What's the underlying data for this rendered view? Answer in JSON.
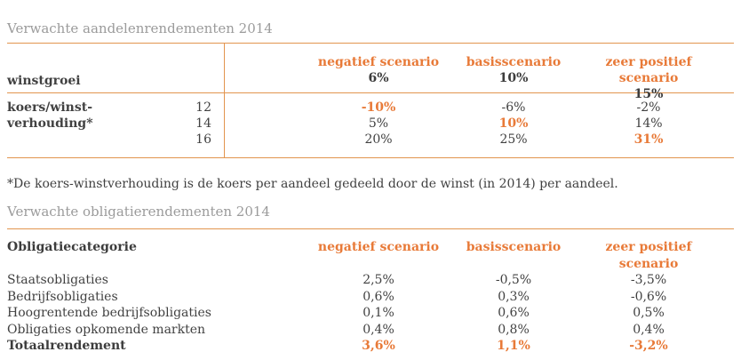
{
  "colors": {
    "orange_text": "#e87a38",
    "orange_line": "#e2954e",
    "title_gray": "#9b9b9b",
    "body_text": "#414141"
  },
  "equity_table": {
    "title": "Verwachte aandelenrendementen 2014",
    "row_axis_label": "winstgroei",
    "scenarios": [
      {
        "label": "negatief scenario",
        "value": "6%"
      },
      {
        "label": "basisscenario",
        "value": "10%"
      },
      {
        "label": "zeer positief scenario",
        "value": "15%"
      }
    ],
    "col_axis_label_line1": "koers/winst-",
    "col_axis_label_line2": "verhouding*",
    "pe_ratios": [
      "12",
      "14",
      "16"
    ],
    "rows": [
      {
        "pe": "12",
        "values": [
          "-10%",
          "-6%",
          "-2%"
        ]
      },
      {
        "pe": "14",
        "values": [
          "5%",
          "10%",
          "14%"
        ]
      },
      {
        "pe": "16",
        "values": [
          "20%",
          "25%",
          "31%"
        ]
      }
    ],
    "footnote": "*De koers-winstverhouding is de koers per aandeel gedeeld door de winst (in 2014) per aandeel."
  },
  "bond_table": {
    "title": "Verwachte obligatierendementen 2014",
    "category_header": "Obligatiecategorie",
    "scenario_headers": [
      "negatief scenario",
      "basisscenario",
      "zeer positief scenario"
    ],
    "rows": [
      {
        "label": "Staatsobligaties",
        "values": [
          "2,5%",
          "-0,5%",
          "-3,5%"
        ]
      },
      {
        "label": "Bedrijfsobligaties",
        "values": [
          "0,6%",
          "0,3%",
          "-0,6%"
        ]
      },
      {
        "label": "Hoogrentende bedrijfsobligaties",
        "values": [
          "0,1%",
          "0,6%",
          "0,5%"
        ]
      },
      {
        "label": "Obligaties opkomende markten",
        "values": [
          "0,4%",
          "0,8%",
          "0,4%"
        ]
      },
      {
        "label": "Totaalrendement",
        "values": [
          "3,6%",
          "1,1%",
          "-3,2%"
        ]
      }
    ]
  }
}
